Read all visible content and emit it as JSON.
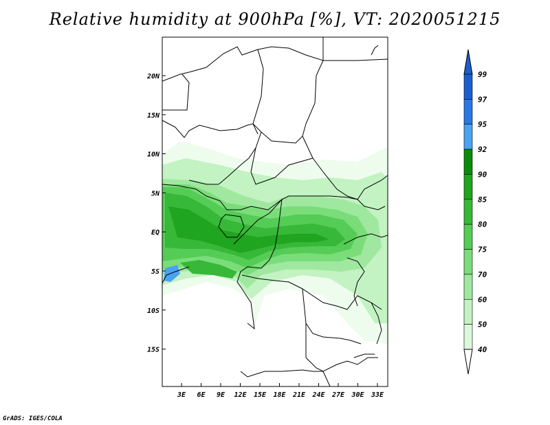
{
  "title": "Relative humidity at 900hPa [%], VT: 2020051215",
  "credit": "GrADS: IGES/COLA",
  "map": {
    "lon_ticks": [
      "3E",
      "6E",
      "9E",
      "12E",
      "15E",
      "18E",
      "21E",
      "24E",
      "27E",
      "30E",
      "33E"
    ],
    "lat_ticks": [
      "20N",
      "15N",
      "10N",
      "5N",
      "EQ",
      "5S",
      "10S",
      "15S"
    ]
  },
  "colorbar": {
    "levels": [
      "99",
      "97",
      "95",
      "92",
      "90",
      "85",
      "80",
      "75",
      "70",
      "60",
      "50",
      "40"
    ],
    "colors": [
      "#1a5fd0",
      "#2b78e4",
      "#4aa3f0",
      "#0a8c0a",
      "#1fa51f",
      "#38b838",
      "#55cc55",
      "#7add7a",
      "#a0e8a0",
      "#c3f2c3",
      "#dcf8dc",
      "#eefcee"
    ]
  }
}
